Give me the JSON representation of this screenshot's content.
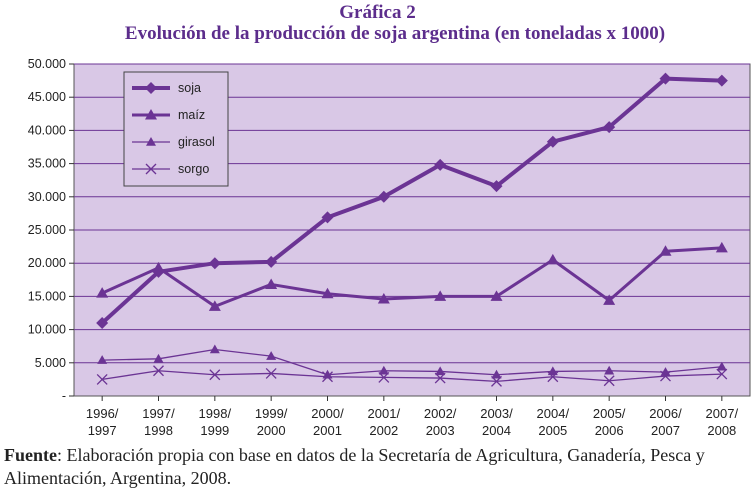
{
  "title": "Gráfica 2",
  "subtitle": "Evolución de la producción de soja argentina (en toneladas x 1000)",
  "source_label": "Fuente",
  "source_text": ": Elaboración propia con base en datos de la Secretaría de Agricultura, Ganadería, Pesca y Alimentación, Argentina, 2008.",
  "colors": {
    "line": "#6b3494",
    "plot_bg": "#d9c8e6",
    "grid": "#6b3494",
    "text": "#222222"
  },
  "chart_data": {
    "type": "line",
    "title": "Evolución de la producción de soja argentina (en toneladas x 1000)",
    "xlabel": "",
    "ylabel": "",
    "ylim": [
      0,
      50000
    ],
    "yticks": [
      {
        "value": 0,
        "label": "-"
      },
      {
        "value": 5000,
        "label": "5.000"
      },
      {
        "value": 10000,
        "label": "10.000"
      },
      {
        "value": 15000,
        "label": "15.000"
      },
      {
        "value": 20000,
        "label": "20.000"
      },
      {
        "value": 25000,
        "label": "25.000"
      },
      {
        "value": 30000,
        "label": "30.000"
      },
      {
        "value": 35000,
        "label": "35.000"
      },
      {
        "value": 40000,
        "label": "40.000"
      },
      {
        "value": 45000,
        "label": "45.000"
      },
      {
        "value": 50000,
        "label": "50.000"
      }
    ],
    "categories": [
      "1996/ 1997",
      "1997/ 1998",
      "1998/ 1999",
      "1999/ 2000",
      "2000/ 2001",
      "2001/ 2002",
      "2002/ 2003",
      "2003/ 2004",
      "2004/ 2005",
      "2005/ 2006",
      "2006/ 2007",
      "2007/ 2008"
    ],
    "grid": true,
    "legend_position": "top-left",
    "series": [
      {
        "name": "soja",
        "marker": "diamond",
        "weight": "heavy",
        "values": [
          11000,
          18700,
          20000,
          20200,
          26900,
          30000,
          34800,
          31600,
          38300,
          40500,
          47800,
          47500
        ]
      },
      {
        "name": "maíz",
        "marker": "triangle",
        "weight": "medium",
        "values": [
          15500,
          19300,
          13500,
          16800,
          15400,
          14600,
          15000,
          15000,
          20500,
          14400,
          21800,
          22300
        ]
      },
      {
        "name": "girasol",
        "marker": "triangle",
        "weight": "thin",
        "values": [
          5400,
          5600,
          7000,
          6000,
          3200,
          3800,
          3700,
          3200,
          3700,
          3800,
          3600,
          4400
        ]
      },
      {
        "name": "sorgo",
        "marker": "x",
        "weight": "thin",
        "values": [
          2500,
          3800,
          3200,
          3400,
          2900,
          2800,
          2700,
          2200,
          2900,
          2300,
          3000,
          3300
        ]
      }
    ]
  }
}
